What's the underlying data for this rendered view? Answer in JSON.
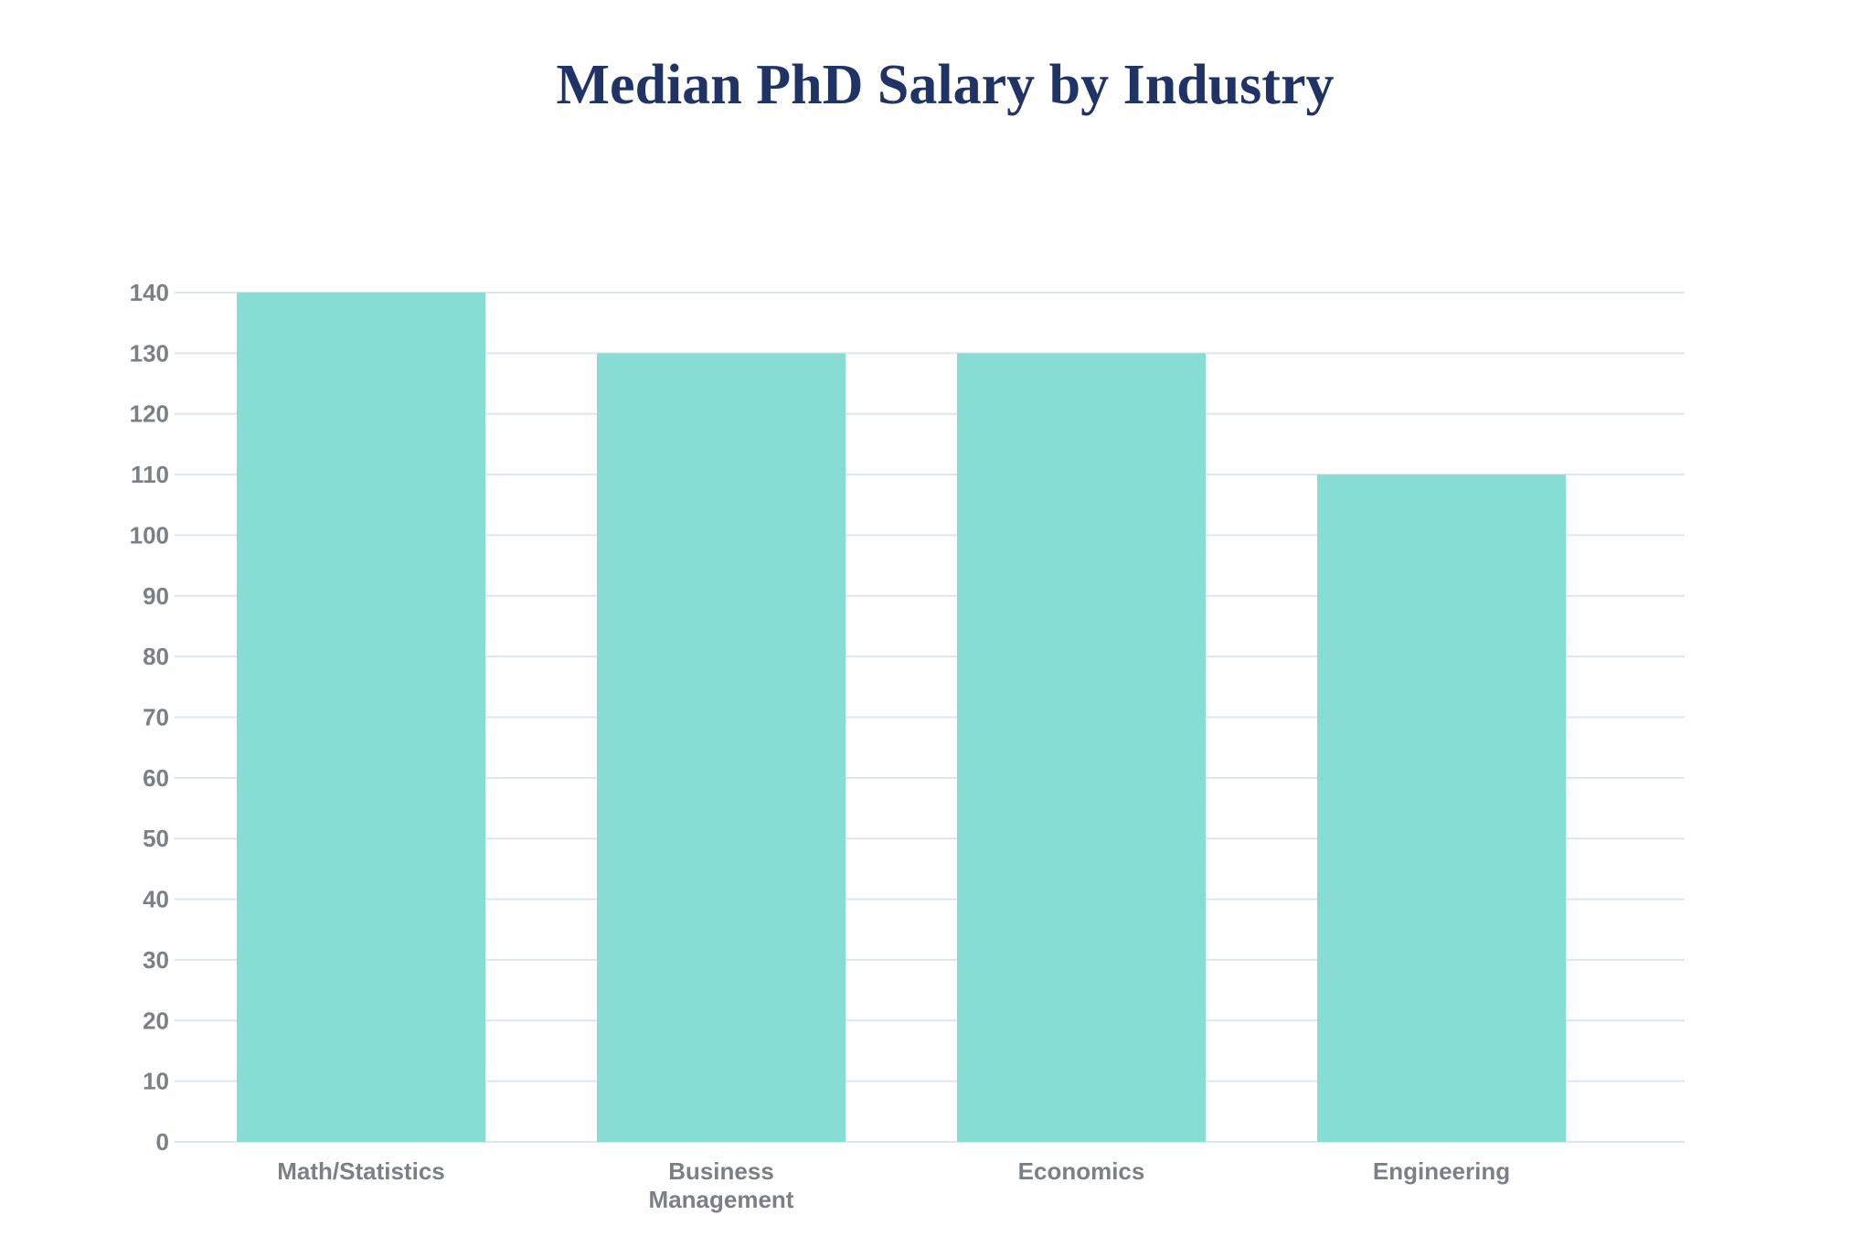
{
  "chart_data": {
    "type": "bar",
    "title": "Median PhD Salary by Industry",
    "categories": [
      "Math/Statistics",
      "Business Management",
      "Economics",
      "Engineering"
    ],
    "category_lines": [
      [
        "Math/Statistics"
      ],
      [
        "Business",
        "Management"
      ],
      [
        "Economics"
      ],
      [
        "Engineering"
      ]
    ],
    "values": [
      140,
      130,
      130,
      110
    ],
    "xlabel": "",
    "ylabel": "",
    "ylim": [
      0,
      140
    ],
    "yticks": [
      0,
      10,
      20,
      30,
      40,
      50,
      60,
      70,
      80,
      90,
      100,
      110,
      120,
      130,
      140
    ],
    "grid": true,
    "bar_color": "#87ddd4",
    "grid_color": "#dde6ee",
    "title_color": "#1f3366",
    "tick_color": "#7a8088"
  }
}
